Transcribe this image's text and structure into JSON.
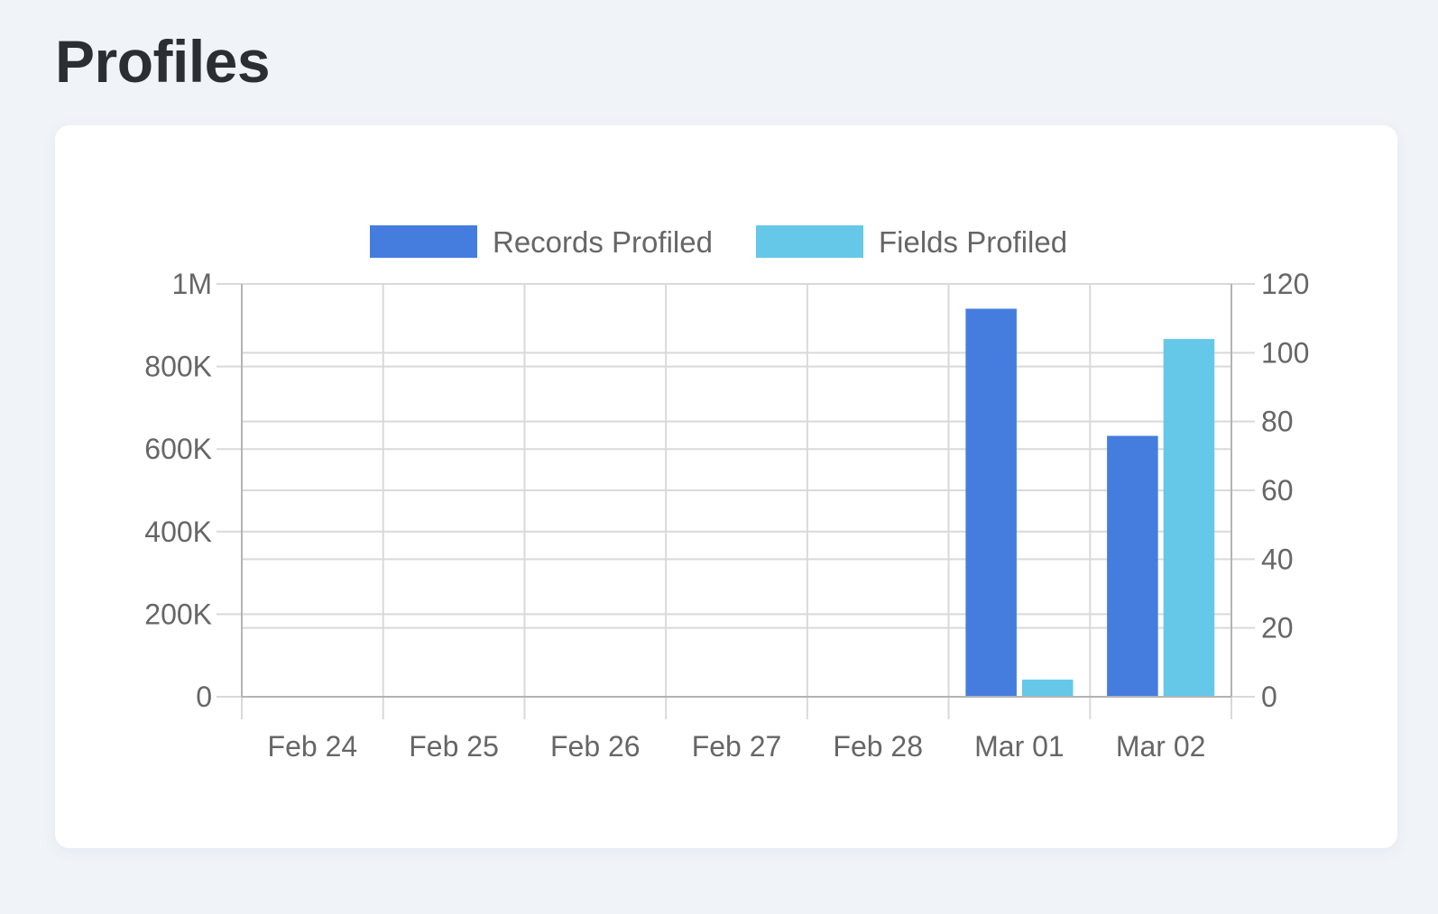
{
  "header": {
    "title": "Profiles"
  },
  "colors": {
    "records": "#457ddf",
    "fields": "#66c8e8",
    "grid": "#d9d9d9",
    "axis": "#b3b3b3",
    "text": "#666666"
  },
  "chart_data": {
    "type": "bar",
    "title": "",
    "xlabel": "",
    "ylabel": "",
    "categories": [
      "Feb 24",
      "Feb 25",
      "Feb 26",
      "Feb 27",
      "Feb 28",
      "Mar 01",
      "Mar 02"
    ],
    "series": [
      {
        "name": "Records Profiled",
        "axis": "left",
        "values": [
          0,
          0,
          0,
          0,
          0,
          940000,
          632000
        ]
      },
      {
        "name": "Fields Profiled",
        "axis": "right",
        "values": [
          0,
          0,
          0,
          0,
          0,
          5,
          104
        ]
      }
    ],
    "ylim_left": [
      0,
      1000000
    ],
    "yticks_left": [
      "0",
      "200K",
      "400K",
      "600K",
      "800K",
      "1M"
    ],
    "ylim_right": [
      0,
      120
    ],
    "yticks_right": [
      "0",
      "20",
      "40",
      "60",
      "80",
      "100",
      "120"
    ],
    "legend": "top-center",
    "grid": true
  }
}
